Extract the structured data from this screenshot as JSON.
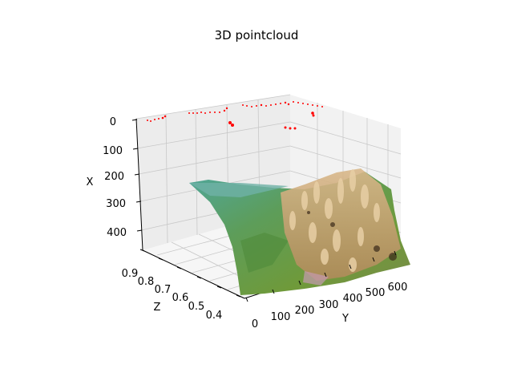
{
  "chart_data": {
    "type": "scatter3d",
    "title": "3D pointcloud",
    "xlabel": "X",
    "ylabel": "Y",
    "zlabel": "Z",
    "x_ticks": [
      "0",
      "100",
      "200",
      "300",
      "400"
    ],
    "y_ticks": [
      "0",
      "100",
      "200",
      "300",
      "400",
      "500",
      "600"
    ],
    "z_ticks": [
      "0.9",
      "0.8",
      "0.7",
      "0.6",
      "0.5",
      "0.4"
    ],
    "xlim": [
      0,
      480
    ],
    "ylim": [
      0,
      640
    ],
    "zlim": [
      0.35,
      0.92
    ],
    "grid": true,
    "series": [
      {
        "color": "#ff0000",
        "marker": "point"
      },
      {
        "color_scheme": "rgb image colors (teal, green, tan coral)"
      }
    ],
    "colors": {
      "pane_left": "#ececec",
      "pane_back": "#f2f2f2",
      "pane_floor": "#f6f6f6",
      "grid": "#c8c8c8",
      "red_points": "#ff0000"
    }
  }
}
